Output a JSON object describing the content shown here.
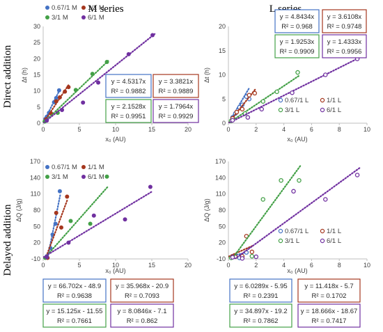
{
  "headings": {
    "m_series": "M series",
    "l_series": "L series",
    "direct": "Direct addition",
    "delayed": "Delayed addition"
  },
  "colors": {
    "0.67": "#4472c4",
    "1": "#a5371e",
    "3": "#43a047",
    "6": "#7030a0"
  },
  "chart_data": [
    {
      "id": "m_direct",
      "type": "scatter",
      "xlabel": "x₀ (AU)",
      "ylabel": "Δt (h)",
      "xlim": [
        0,
        20
      ],
      "ylim": [
        0,
        30
      ],
      "xticks": [
        0,
        5,
        10,
        15,
        20
      ],
      "yticks": [
        0,
        5,
        10,
        15,
        20,
        25,
        30
      ],
      "xtick_labels": [
        "0",
        "5",
        "10",
        "15",
        "20"
      ],
      "ytick_labels": [
        "0",
        "5",
        "10",
        "15",
        "20",
        "25",
        "30"
      ],
      "legend_markers": "filled",
      "series": [
        {
          "name": "0.67/1 M",
          "color_key": "0.67",
          "points": [
            [
              0.3,
              1.3
            ],
            [
              0.8,
              3.2
            ],
            [
              1.5,
              6.5
            ],
            [
              1.8,
              7.8
            ],
            [
              2.2,
              10.2
            ],
            [
              0.5,
              2.0
            ]
          ],
          "fit": {
            "slope": 4.5317,
            "intercept": 0
          }
        },
        {
          "name": "1/1 M",
          "color_key": "1",
          "points": [
            [
              0.4,
              1.2
            ],
            [
              1.1,
              3.0
            ],
            [
              1.8,
              6.8
            ],
            [
              2.3,
              8.0
            ],
            [
              3.0,
              9.8
            ],
            [
              3.5,
              11.2
            ]
          ],
          "fit": {
            "slope": 3.3821,
            "intercept": 0
          }
        },
        {
          "name": "3/1 M",
          "color_key": "3",
          "points": [
            [
              0.2,
              0.5
            ],
            [
              2.0,
              3.2
            ],
            [
              4.5,
              10.3
            ],
            [
              6.8,
              15.3
            ],
            [
              8.8,
              19.0
            ]
          ],
          "fit": {
            "slope": 2.1528,
            "intercept": 0
          }
        },
        {
          "name": "6/1 M",
          "color_key": "6",
          "points": [
            [
              0.5,
              0.8
            ],
            [
              2.6,
              4.1
            ],
            [
              5.5,
              6.4
            ],
            [
              7.6,
              12.6
            ],
            [
              11.8,
              21.4
            ],
            [
              15.1,
              27.3
            ]
          ],
          "fit": {
            "slope": 1.7964,
            "intercept": 0
          }
        }
      ],
      "equations": [
        {
          "color_key": "0.67",
          "line1": "y = 4.5317x",
          "line2": "R² = 0.9882"
        },
        {
          "color_key": "1",
          "line1": "y = 3.3821x",
          "line2": "R² = 0.9889"
        },
        {
          "color_key": "3",
          "line1": "y = 2.1528x",
          "line2": "R² = 0.9951"
        },
        {
          "color_key": "6",
          "line1": "y = 1.7964x",
          "line2": "R² = 0.9929"
        }
      ]
    },
    {
      "id": "l_direct",
      "type": "scatter",
      "xlabel": "x₀ (AU)",
      "ylabel": "Δt (h)",
      "xlim": [
        0,
        10
      ],
      "ylim": [
        0,
        20
      ],
      "xticks": [
        0,
        2,
        4,
        6,
        8,
        10
      ],
      "yticks": [
        0,
        5,
        10,
        15,
        20
      ],
      "xtick_labels": [
        "0",
        "2",
        "4",
        "6",
        "8",
        "10"
      ],
      "ytick_labels": [
        "0",
        "5",
        "10",
        "15",
        "20"
      ],
      "legend_markers": "open",
      "series": [
        {
          "name": "0.67/1 L",
          "color_key": "0.67",
          "points": [
            [
              0.3,
              1.2
            ],
            [
              0.5,
              2.0
            ],
            [
              0.8,
              3.3
            ],
            [
              1.0,
              3.8
            ],
            [
              1.3,
              5.5
            ],
            [
              1.5,
              5.0
            ]
          ],
          "fit": {
            "slope": 4.8434,
            "intercept": 0
          }
        },
        {
          "name": "1/1 L",
          "color_key": "1",
          "points": [
            [
              0.3,
              1.0
            ],
            [
              0.6,
              2.3
            ],
            [
              1.0,
              2.9
            ],
            [
              1.5,
              5.8
            ],
            [
              1.9,
              6.2
            ]
          ],
          "fit": {
            "slope": 3.6108,
            "intercept": 0
          }
        },
        {
          "name": "3/1 L",
          "color_key": "3",
          "points": [
            [
              0.2,
              0.5
            ],
            [
              1.2,
              2.0
            ],
            [
              2.5,
              4.5
            ],
            [
              3.5,
              6.5
            ],
            [
              5.0,
              10.5
            ]
          ],
          "fit": {
            "slope": 1.9253,
            "intercept": 0
          }
        },
        {
          "name": "6/1 L",
          "color_key": "6",
          "points": [
            [
              0.3,
              0.6
            ],
            [
              1.4,
              1.2
            ],
            [
              2.4,
              2.9
            ],
            [
              4.6,
              6.3
            ],
            [
              7.0,
              10.0
            ],
            [
              9.3,
              13.3
            ]
          ],
          "fit": {
            "slope": 1.4333,
            "intercept": 0
          }
        }
      ],
      "equations": [
        {
          "color_key": "0.67",
          "line1": "y = 4.8434x",
          "line2": "R² = 0.968"
        },
        {
          "color_key": "1",
          "line1": "y = 3.6108x",
          "line2": "R² = 0.9748"
        },
        {
          "color_key": "3",
          "line1": "y = 1.9253x",
          "line2": "R² = 0.9909"
        },
        {
          "color_key": "6",
          "line1": "y = 1.4333x",
          "line2": "R² = 0.9956"
        }
      ]
    },
    {
      "id": "m_delayed",
      "type": "scatter",
      "xlabel": "x₀ (AU)",
      "ylabel": "ΔQ (J/g)",
      "xlim": [
        0,
        20
      ],
      "ylim": [
        -10,
        170
      ],
      "xticks": [
        0,
        5,
        10,
        15,
        20
      ],
      "yticks": [
        -10,
        20,
        50,
        80,
        110,
        140,
        170
      ],
      "xtick_labels": [
        "0",
        "5",
        "10",
        "15",
        "20"
      ],
      "ytick_labels": [
        "-10",
        "20",
        "50",
        "80",
        "110",
        "140",
        "170"
      ],
      "legend_markers": "filled",
      "series": [
        {
          "name": "0.67/1 M",
          "color_key": "0.67",
          "points": [
            [
              0.5,
              -5
            ],
            [
              1.0,
              10
            ],
            [
              1.3,
              35
            ],
            [
              1.7,
              55
            ],
            [
              2.3,
              115
            ]
          ],
          "fit": {
            "slope": 66.702,
            "intercept": -48.9
          }
        },
        {
          "name": "1/1 M",
          "color_key": "1",
          "points": [
            [
              0.6,
              -8
            ],
            [
              1.8,
              75
            ],
            [
              2.5,
              48
            ],
            [
              3.3,
              105
            ]
          ],
          "fit": {
            "slope": 35.968,
            "intercept": -20.9
          }
        },
        {
          "name": "3/1 M",
          "color_key": "3",
          "points": [
            [
              0.3,
              -8
            ],
            [
              3.8,
              60
            ],
            [
              6.5,
              55
            ],
            [
              8.8,
              142
            ]
          ],
          "fit": {
            "slope": 15.125,
            "intercept": -11.55
          }
        },
        {
          "name": "6/1 M",
          "color_key": "6",
          "points": [
            [
              0.5,
              -7
            ],
            [
              3.5,
              20
            ],
            [
              7.0,
              70
            ],
            [
              11.3,
              63
            ],
            [
              14.8,
              123
            ]
          ],
          "fit": {
            "slope": 8.0846,
            "intercept": -7.1
          }
        }
      ],
      "equations": [
        {
          "color_key": "0.67",
          "line1": "y = 66.702x - 48.9",
          "line2": "R² = 0.9638"
        },
        {
          "color_key": "1",
          "line1": "y = 35.968x - 20.9",
          "line2": "R² = 0.7093"
        },
        {
          "color_key": "3",
          "line1": "y = 15.125x - 11.55",
          "line2": "R² = 0.7661"
        },
        {
          "color_key": "6",
          "line1": "y = 8.0846x - 7.1",
          "line2": "R² = 0.862"
        }
      ]
    },
    {
      "id": "l_delayed",
      "type": "scatter",
      "xlabel": "x₀ (AU)",
      "ylabel": "ΔQ (J/g)",
      "xlim": [
        0,
        10
      ],
      "ylim": [
        -10,
        170
      ],
      "xticks": [
        0,
        2,
        4,
        6,
        8,
        10
      ],
      "yticks": [
        -10,
        20,
        50,
        80,
        110,
        140,
        170
      ],
      "xtick_labels": [
        "0",
        "2",
        "4",
        "6",
        "8",
        "10"
      ],
      "ytick_labels": [
        "-10",
        "20",
        "50",
        "80",
        "110",
        "140",
        "170"
      ],
      "legend_markers": "open",
      "series": [
        {
          "name": "0.67/1 L",
          "color_key": "0.67",
          "points": [
            [
              0.3,
              -5
            ],
            [
              0.8,
              -8
            ],
            [
              1.0,
              -7
            ],
            [
              1.3,
              2
            ]
          ],
          "fit": {
            "slope": 6.0289,
            "intercept": -5.95
          }
        },
        {
          "name": "1/1 L",
          "color_key": "1",
          "points": [
            [
              0.5,
              -6
            ],
            [
              1.0,
              -5
            ],
            [
              1.3,
              32
            ],
            [
              1.7,
              3
            ]
          ],
          "fit": {
            "slope": 11.418,
            "intercept": -5.7
          }
        },
        {
          "name": "3/1 L",
          "color_key": "3",
          "points": [
            [
              0.2,
              -8
            ],
            [
              1.7,
              -5
            ],
            [
              2.5,
              100
            ],
            [
              3.8,
              135
            ],
            [
              5.1,
              135
            ]
          ],
          "fit": {
            "slope": 34.897,
            "intercept": -19.2
          }
        },
        {
          "name": "6/1 L",
          "color_key": "6",
          "points": [
            [
              0.3,
              -7
            ],
            [
              1.0,
              -9
            ],
            [
              2.0,
              -6
            ],
            [
              4.7,
              115
            ],
            [
              7.0,
              100
            ],
            [
              9.3,
              145
            ]
          ],
          "fit": {
            "slope": 18.666,
            "intercept": -18.67
          }
        }
      ],
      "equations": [
        {
          "color_key": "0.67",
          "line1": "y = 6.0289x - 5.95",
          "line2": "R² = 0.2391"
        },
        {
          "color_key": "1",
          "line1": "y = 11.418x - 5.7",
          "line2": "R² = 0.1702"
        },
        {
          "color_key": "3",
          "line1": "y = 34.897x - 19.2",
          "line2": "R² = 0.7862"
        },
        {
          "color_key": "6",
          "line1": "y = 18.666x - 18.67",
          "line2": "R² = 0.7417"
        }
      ]
    }
  ]
}
